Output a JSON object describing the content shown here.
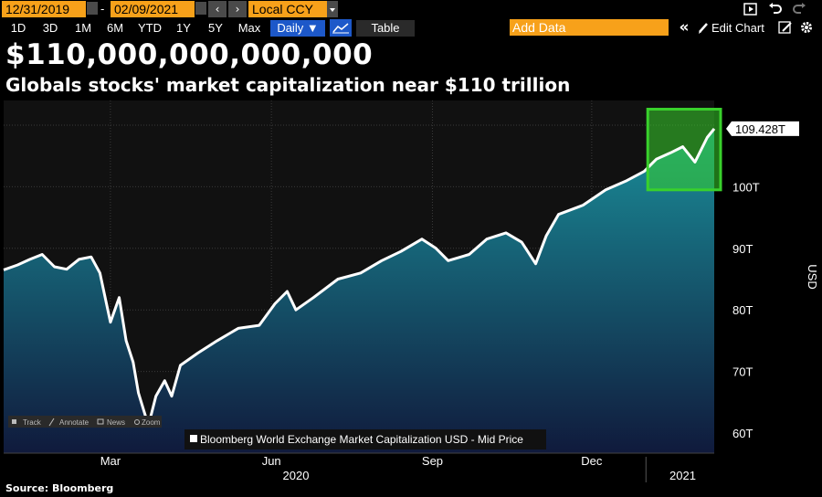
{
  "toolbar": {
    "start_date": "12/31/2019",
    "date_separator": "-",
    "end_date": "02/09/2021",
    "currency": "Local CCY",
    "ranges": [
      "1D",
      "3D",
      "1M",
      "6M",
      "YTD",
      "1Y",
      "5Y",
      "Max"
    ],
    "frequency": "Daily ▼",
    "table_label": "Table",
    "add_data_placeholder": "Add Data",
    "edit_chart_label": "Edit Chart",
    "collapse_glyph": "«",
    "prev_glyph": "‹",
    "next_glyph": "›"
  },
  "headline": "$110,000,000,000,000",
  "subheadline": "Globals stocks' market capitalization near $110 trillion",
  "source": "Source: Bloomberg",
  "colors": {
    "accent_orange": "#f7a11a",
    "highlight_green": "#39d12c",
    "area_top": "#1a8f9a",
    "area_bottom": "#101a3c",
    "line": "#ffffff"
  },
  "chart_tools": [
    "Track",
    "Annotate",
    "News",
    "Zoom"
  ],
  "chart_data": {
    "type": "area",
    "title": "",
    "xlabel": "2020",
    "x_year_labels": [
      "2020",
      "2021"
    ],
    "ylabel": "USD",
    "x_tick_labels": [
      "Mar",
      "Jun",
      "Sep",
      "Dec"
    ],
    "y_tick_labels": [
      "60T",
      "70T",
      "80T",
      "90T",
      "100T"
    ],
    "ylim": [
      59,
      113
    ],
    "grid": true,
    "legend": "bottom-center",
    "series": [
      {
        "name": "Bloomberg World Exchange Market Capitalization USD - Mid Price",
        "last_value_label": "109.428T",
        "x": [
          "2019-12-31",
          "2020-01-08",
          "2020-01-15",
          "2020-01-22",
          "2020-01-29",
          "2020-02-05",
          "2020-02-12",
          "2020-02-19",
          "2020-02-24",
          "2020-03-01",
          "2020-03-06",
          "2020-03-10",
          "2020-03-14",
          "2020-03-17",
          "2020-03-21",
          "2020-03-23",
          "2020-03-27",
          "2020-04-01",
          "2020-04-05",
          "2020-04-10",
          "2020-04-20",
          "2020-05-01",
          "2020-05-13",
          "2020-05-25",
          "2020-06-03",
          "2020-06-10",
          "2020-06-15",
          "2020-06-25",
          "2020-07-09",
          "2020-07-22",
          "2020-08-03",
          "2020-08-14",
          "2020-08-26",
          "2020-09-03",
          "2020-09-10",
          "2020-09-22",
          "2020-10-02",
          "2020-10-13",
          "2020-10-22",
          "2020-10-30",
          "2020-11-05",
          "2020-11-12",
          "2020-11-26",
          "2020-12-09",
          "2020-12-21",
          "2020-12-31",
          "2021-01-07",
          "2021-01-15",
          "2021-01-22",
          "2021-01-29",
          "2021-02-05",
          "2021-02-09"
        ],
        "values": [
          86.5,
          87.3,
          88.2,
          89.0,
          87.0,
          86.6,
          88.2,
          88.6,
          86.0,
          78.0,
          82.0,
          75.0,
          71.5,
          66.5,
          62.8,
          61.5,
          66.0,
          68.5,
          66.0,
          71.0,
          73.0,
          75.0,
          77.0,
          77.5,
          81.0,
          83.0,
          80.0,
          82.0,
          85.0,
          86.0,
          88.0,
          89.5,
          91.5,
          90.0,
          88.0,
          89.0,
          91.5,
          92.5,
          91.0,
          87.5,
          92.0,
          95.5,
          97.0,
          99.5,
          101.0,
          102.5,
          104.5,
          105.5,
          106.5,
          104.0,
          108.0,
          109.428
        ]
      }
    ]
  }
}
